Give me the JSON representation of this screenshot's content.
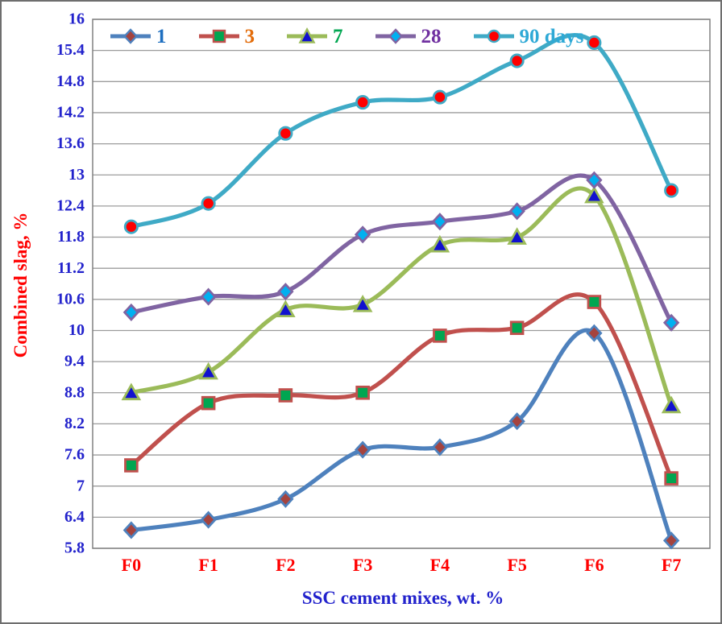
{
  "chart_data": {
    "type": "line",
    "title": "",
    "xlabel": "SSC cement mixes, wt. %",
    "ylabel": "Combined slag, %",
    "categories": [
      "F0",
      "F1",
      "F2",
      "F3",
      "F4",
      "F5",
      "F6",
      "F7"
    ],
    "ylim": [
      5.8,
      16
    ],
    "y_step": 0.6,
    "y_tick_labels": [
      "16",
      "15.4",
      "14.8",
      "14.2",
      "13.6",
      "13",
      "12.4",
      "11.8",
      "11.2",
      "10.6",
      "10",
      "9.4",
      "8.8",
      "8.2",
      "7.6",
      "7",
      "6.4",
      "5.8"
    ],
    "grid": "horizontal",
    "grid_color": "#9c9c9c",
    "plot_border_color": "#808080",
    "legend_position": "top-inside",
    "axis_colors": {
      "y_tick": "#2222cc",
      "x_tick": "#ff0000",
      "y_title": "#ff0000",
      "x_title": "#2222cc"
    },
    "series": [
      {
        "name": "1",
        "label_color": "#1e6fc0",
        "line_color": "#4e81bd",
        "marker": "diamond",
        "marker_fill": "#a5433e",
        "values": [
          6.15,
          6.35,
          6.75,
          7.7,
          7.75,
          8.25,
          9.95,
          5.95
        ]
      },
      {
        "name": "3",
        "label_color": "#e36c0a",
        "line_color": "#c0504d",
        "marker": "square",
        "marker_fill": "#00a651",
        "values": [
          7.4,
          8.6,
          8.75,
          8.8,
          9.9,
          10.05,
          10.55,
          7.15
        ]
      },
      {
        "name": "7",
        "label_color": "#00a651",
        "line_color": "#9bbb59",
        "marker": "triangle",
        "marker_fill": "#1111cf",
        "values": [
          8.8,
          9.2,
          10.4,
          10.5,
          11.65,
          11.8,
          12.6,
          8.55
        ]
      },
      {
        "name": "28",
        "label_color": "#7030a0",
        "line_color": "#8064a2",
        "marker": "diamond",
        "marker_fill": "#00b0f0",
        "values": [
          10.35,
          10.65,
          10.75,
          11.85,
          12.1,
          12.3,
          12.9,
          10.15
        ]
      },
      {
        "name": "90 days",
        "label_color": "#2ea9d6",
        "line_color": "#3faac6",
        "marker": "circle",
        "marker_fill": "#fe0000",
        "values": [
          12.0,
          12.45,
          13.8,
          14.4,
          14.5,
          15.2,
          15.55,
          12.7
        ]
      }
    ]
  }
}
